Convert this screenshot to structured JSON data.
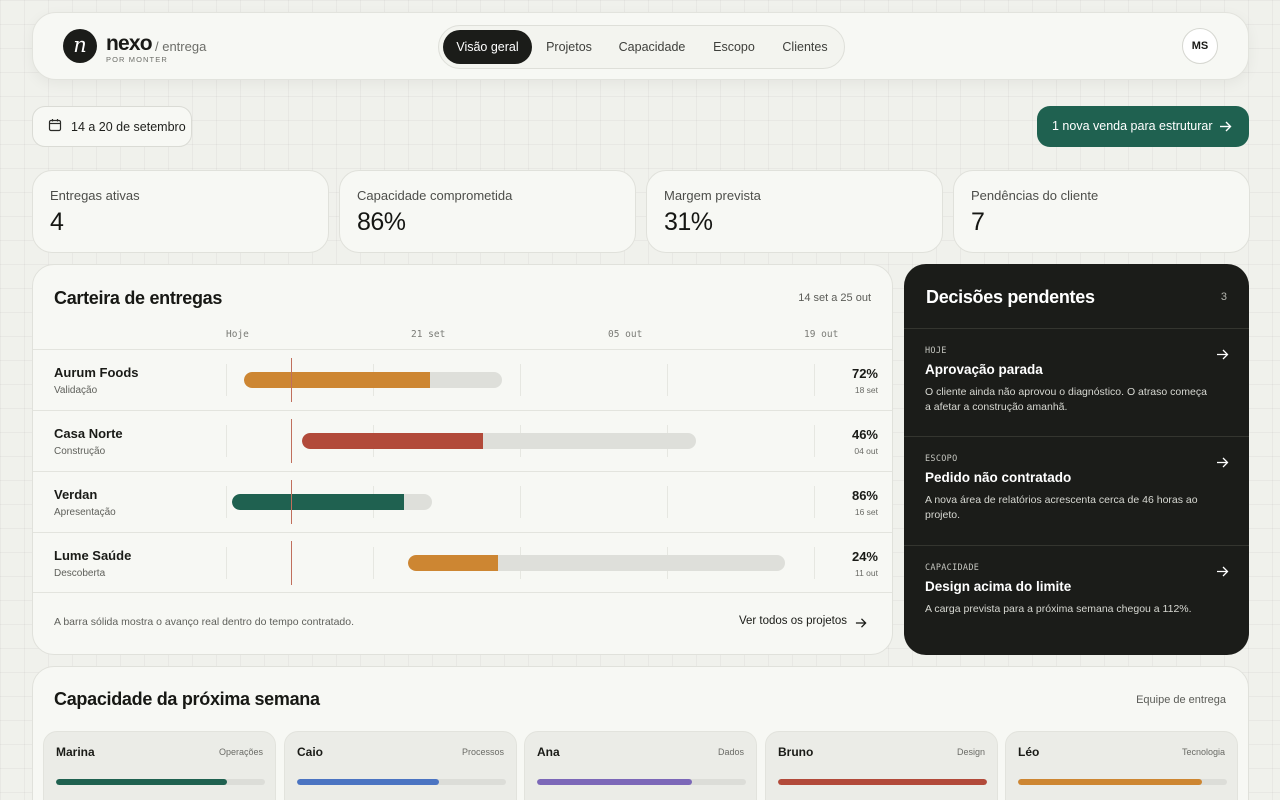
{
  "brand": {
    "mark": "n",
    "name": "nexo",
    "section": "/ entrega",
    "by": "POR MONTER"
  },
  "nav": [
    {
      "label": "Visão geral",
      "active": true
    },
    {
      "label": "Projetos"
    },
    {
      "label": "Capacidade"
    },
    {
      "label": "Escopo"
    },
    {
      "label": "Clientes"
    }
  ],
  "user": {
    "initials": "MS"
  },
  "date_range": {
    "label": "14 a 20 de setembro",
    "icon": "calendar-icon"
  },
  "cta": {
    "label": "1 nova venda para estruturar",
    "icon": "arrow-right-icon"
  },
  "stats": [
    {
      "label": "Entregas ativas",
      "value": "4"
    },
    {
      "label": "Capacidade comprometida",
      "value": "86%"
    },
    {
      "label": "Margem prevista",
      "value": "31%"
    },
    {
      "label": "Pendências do cliente",
      "value": "7"
    }
  ],
  "portfolio": {
    "title": "Carteira de entregas",
    "range": "14 set a 25 out",
    "timeline": [
      "Hoje",
      "21 set",
      "05 out",
      "19 out"
    ],
    "rows": [
      {
        "name": "Aurum Foods",
        "phase": "Validação",
        "pct": "72%",
        "due": "18 set",
        "progress": 0.72,
        "color": "#cd8632"
      },
      {
        "name": "Casa Norte",
        "phase": "Construção",
        "pct": "46%",
        "due": "04 out",
        "progress": 0.46,
        "color": "#b24a3a"
      },
      {
        "name": "Verdan",
        "phase": "Apresentação",
        "pct": "86%",
        "due": "16 set",
        "progress": 0.86,
        "color": "#1f6150"
      },
      {
        "name": "Lume Saúde",
        "phase": "Descoberta",
        "pct": "24%",
        "due": "11 out",
        "progress": 0.24,
        "color": "#cd8632"
      }
    ],
    "note": "A barra sólida mostra o avanço real dentro do tempo contratado.",
    "link": "Ver todos os projetos"
  },
  "decisions": {
    "title": "Decisões pendentes",
    "count": "3",
    "items": [
      {
        "tag": "HOJE",
        "title": "Aprovação parada",
        "body": "O cliente ainda não aprovou o diagnóstico. O atraso começa a afetar a construção amanhã."
      },
      {
        "tag": "ESCOPO",
        "title": "Pedido não contratado",
        "body": "A nova área de relatórios acrescenta cerca de 46 horas ao projeto."
      },
      {
        "tag": "CAPACIDADE",
        "title": "Design acima do limite",
        "body": "A carga prevista para a próxima semana chegou a 112%."
      }
    ]
  },
  "capacity": {
    "title": "Capacidade da próxima semana",
    "team_label": "Equipe de entrega",
    "members": [
      {
        "name": "Marina",
        "role": "Operações",
        "load": 0.82,
        "color": "#1f6150"
      },
      {
        "name": "Caio",
        "role": "Processos",
        "load": 0.68,
        "color": "#4b74c2"
      },
      {
        "name": "Ana",
        "role": "Dados",
        "load": 0.74,
        "color": "#7c68b8"
      },
      {
        "name": "Bruno",
        "role": "Design",
        "load": 1.0,
        "color": "#b24a3a"
      },
      {
        "name": "Léo",
        "role": "Tecnologia",
        "load": 0.88,
        "color": "#cd8632"
      }
    ]
  }
}
